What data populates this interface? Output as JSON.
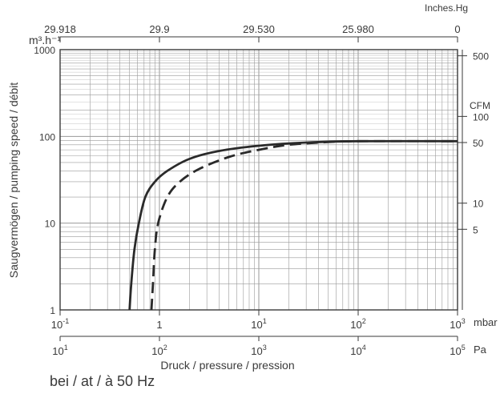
{
  "chart_data": {
    "type": "line",
    "scale": "log-log",
    "grid": true,
    "xlabel": "Druck / pressure / pression",
    "ylabel": "Saugvermögen / pumping speed / débit",
    "x_unit_mbar": "mbar",
    "x_unit_pa": "Pa",
    "y_unit_left": "m³.h⁻¹",
    "y_unit_right": "CFM",
    "top_unit": "Inches.Hg",
    "xlim_mbar": [
      0.1,
      1000
    ],
    "ylim": [
      1,
      1000
    ],
    "x_ticks_mbar": [
      {
        "base": "10",
        "exp": "-1",
        "v": 0.1
      },
      {
        "base": "1",
        "exp": "",
        "v": 1
      },
      {
        "base": "10",
        "exp": "1",
        "v": 10
      },
      {
        "base": "10",
        "exp": "2",
        "v": 100
      },
      {
        "base": "10",
        "exp": "3",
        "v": 1000
      }
    ],
    "x_ticks_pa": [
      {
        "base": "10",
        "exp": "1",
        "v": 0.1
      },
      {
        "base": "10",
        "exp": "2",
        "v": 1
      },
      {
        "base": "10",
        "exp": "3",
        "v": 10
      },
      {
        "base": "10",
        "exp": "4",
        "v": 100
      },
      {
        "base": "10",
        "exp": "5",
        "v": 1000
      }
    ],
    "y_ticks_left": [
      {
        "label": "1000",
        "v": 1000
      },
      {
        "label": "100",
        "v": 100
      },
      {
        "label": "10",
        "v": 10
      },
      {
        "label": "1",
        "v": 1
      }
    ],
    "y_ticks_right": [
      {
        "label": "500",
        "v": 850
      },
      {
        "label": "100",
        "v": 170
      },
      {
        "label": "50",
        "v": 85
      },
      {
        "label": "10",
        "v": 17
      },
      {
        "label": "5",
        "v": 8.5
      }
    ],
    "top_ticks": [
      {
        "label": "29.918",
        "v": 0.1
      },
      {
        "label": "29.9",
        "v": 1
      },
      {
        "label": "29.530",
        "v": 10
      },
      {
        "label": "25.980",
        "v": 100
      },
      {
        "label": "0",
        "v": 1000
      }
    ],
    "series": [
      {
        "style": "solid",
        "points": [
          [
            0.5,
            1
          ],
          [
            0.52,
            2
          ],
          [
            0.56,
            5
          ],
          [
            0.62,
            10
          ],
          [
            0.72,
            20
          ],
          [
            0.9,
            30
          ],
          [
            1.2,
            40
          ],
          [
            2,
            55
          ],
          [
            4,
            68
          ],
          [
            10,
            78
          ],
          [
            30,
            85
          ],
          [
            100,
            88
          ],
          [
            1000,
            88
          ]
        ]
      },
      {
        "style": "dashed",
        "points": [
          [
            0.83,
            1
          ],
          [
            0.86,
            2
          ],
          [
            0.9,
            5
          ],
          [
            0.97,
            10
          ],
          [
            1.2,
            20
          ],
          [
            1.6,
            30
          ],
          [
            2.5,
            42
          ],
          [
            5,
            58
          ],
          [
            10,
            70
          ],
          [
            20,
            80
          ],
          [
            50,
            86
          ],
          [
            100,
            88
          ],
          [
            1000,
            88
          ]
        ]
      }
    ]
  },
  "footer": "bei / at / à 50 Hz"
}
